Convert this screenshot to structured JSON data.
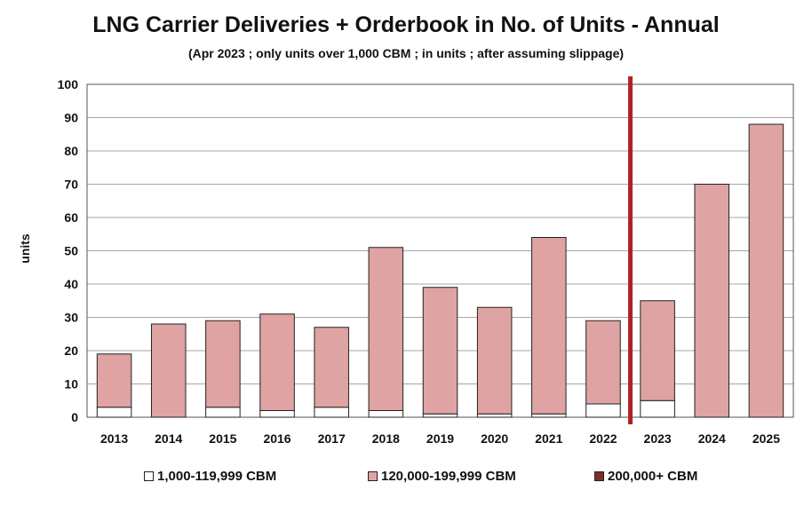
{
  "chart_data": {
    "type": "bar",
    "stacked": true,
    "title": "LNG Carrier Deliveries + Orderbook in No. of Units - Annual",
    "subtitle": "(Apr 2023 ; only units over 1,000 CBM ; in units ; after assuming slippage)",
    "xlabel": "",
    "ylabel": "units",
    "ylim": [
      0,
      100
    ],
    "yticks": [
      0,
      10,
      20,
      30,
      40,
      50,
      60,
      70,
      80,
      90,
      100
    ],
    "grid": true,
    "legend_position": "bottom",
    "categories": [
      "2013",
      "2014",
      "2015",
      "2016",
      "2017",
      "2018",
      "2019",
      "2020",
      "2021",
      "2022",
      "2023",
      "2024",
      "2025"
    ],
    "series": [
      {
        "name": "1,000-119,999 CBM",
        "color": "#ffffff",
        "values": [
          3,
          0,
          3,
          2,
          3,
          2,
          1,
          1,
          1,
          4,
          5,
          0,
          0
        ]
      },
      {
        "name": "120,000-199,999 CBM",
        "color": "#dfa3a3",
        "values": [
          16,
          28,
          26,
          29,
          24,
          49,
          38,
          32,
          53,
          25,
          30,
          70,
          88
        ]
      },
      {
        "name": "200,000+ CBM",
        "color": "#7a2e2a",
        "values": [
          0,
          0,
          0,
          0,
          0,
          0,
          0,
          0,
          0,
          0,
          0,
          0,
          0
        ]
      }
    ],
    "divider_after_category": "2022",
    "divider_color": "#b22222"
  }
}
